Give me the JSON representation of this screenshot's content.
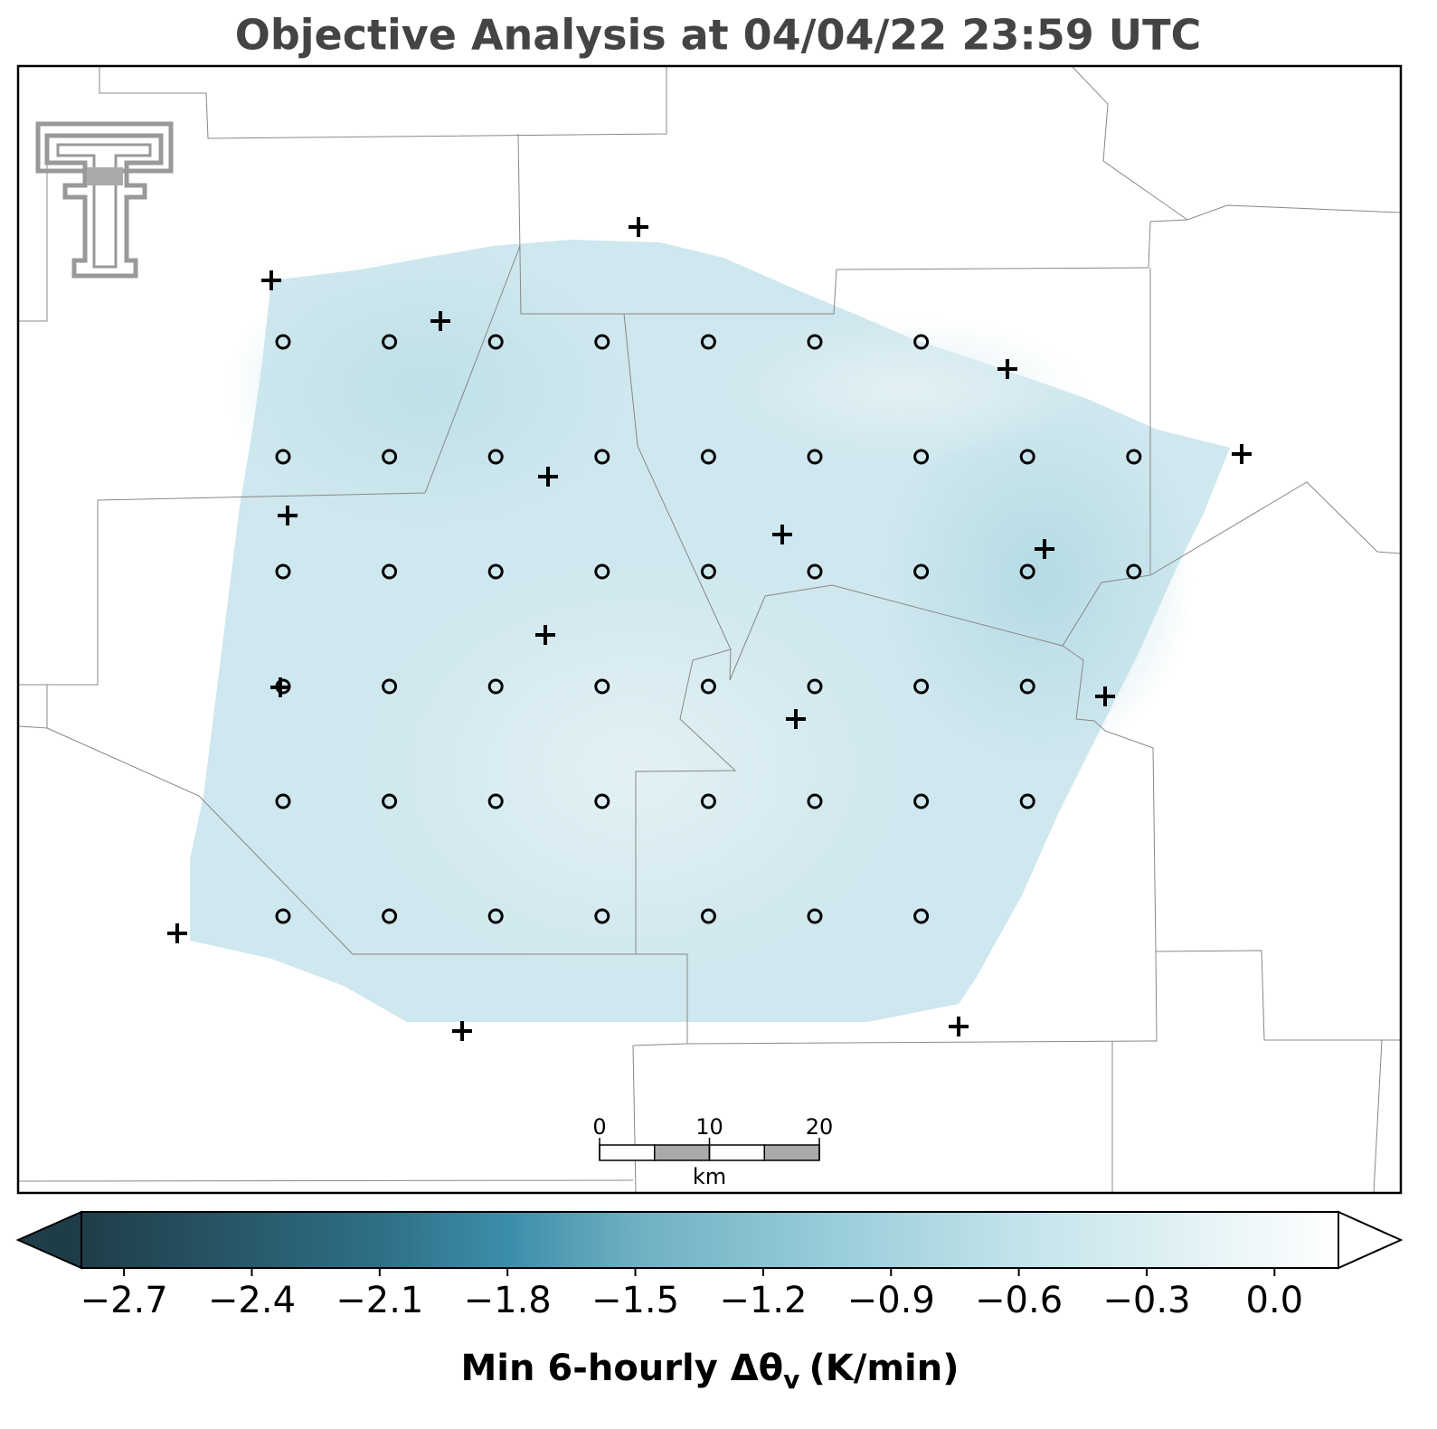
{
  "title": "Objective Analysis at 04/04/22 23:59 UTC",
  "colorbar": {
    "label": "Min 6-hourly Δθ",
    "label_sub": "v",
    "label_unit": "(K/min)",
    "lim": [
      -2.8,
      0.15
    ],
    "ticks": [
      {
        "value": -2.7,
        "label": "−2.7"
      },
      {
        "value": -2.4,
        "label": "−2.4"
      },
      {
        "value": -2.1,
        "label": "−2.1"
      },
      {
        "value": -1.8,
        "label": "−1.8"
      },
      {
        "value": -1.5,
        "label": "−1.5"
      },
      {
        "value": -1.2,
        "label": "−1.2"
      },
      {
        "value": -0.9,
        "label": "−0.9"
      },
      {
        "value": -0.6,
        "label": "−0.6"
      },
      {
        "value": -0.3,
        "label": "−0.3"
      },
      {
        "value": 0,
        "label": "0.0"
      }
    ],
    "colormap": [
      {
        "value": -2.8,
        "color": "#1f3d48"
      },
      {
        "value": -2.1,
        "color": "#2f6f86"
      },
      {
        "value": -1.8,
        "color": "#3b8ea9"
      },
      {
        "value": -1.5,
        "color": "#6fb0c3"
      },
      {
        "value": -1.0,
        "color": "#9ccfdc"
      },
      {
        "value": -0.6,
        "color": "#c2e3ea"
      },
      {
        "value": 0.15,
        "color": "#ffffff"
      }
    ]
  },
  "scale_bar": {
    "ticks": [
      0,
      10,
      20
    ],
    "unit": "km"
  }
}
